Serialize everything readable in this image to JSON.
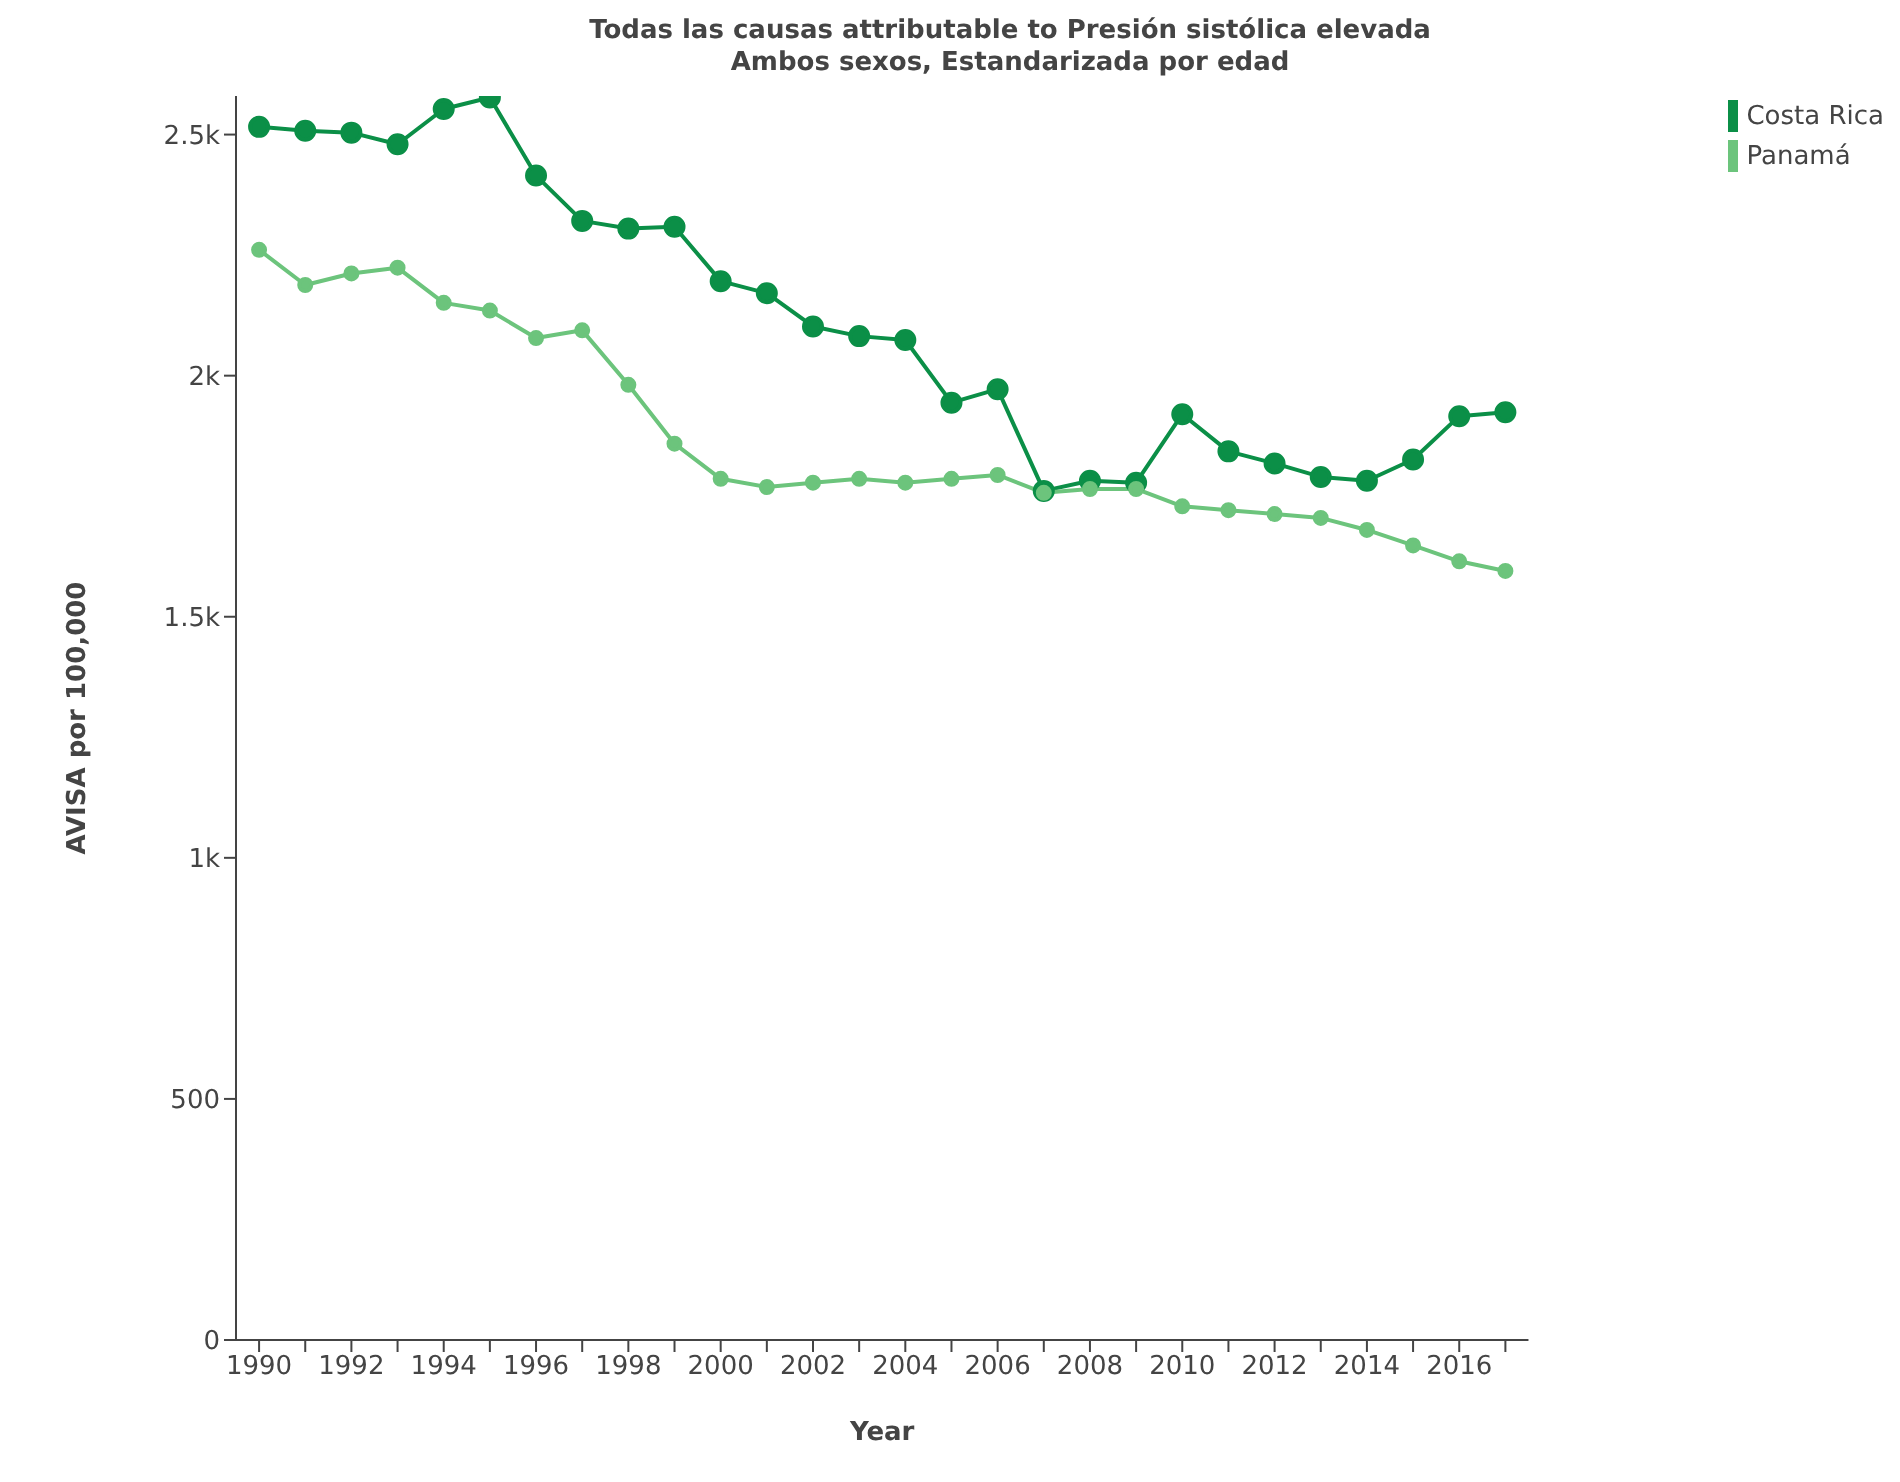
{
  "chart_data": {
    "type": "line",
    "title": "Todas las causas attributable to Presión sistólica elevada",
    "subtitle": "Ambos sexos, Estandarizada por edad",
    "xlabel": "Year",
    "ylabel": "AVISA por 100,000",
    "x": [
      1990,
      1991,
      1992,
      1993,
      1994,
      1995,
      1996,
      1997,
      1998,
      1999,
      2000,
      2001,
      2002,
      2003,
      2004,
      2005,
      2006,
      2007,
      2008,
      2009,
      2010,
      2011,
      2012,
      2013,
      2014,
      2015,
      2016,
      2017
    ],
    "series": [
      {
        "name": "Costa Rica",
        "color": "#0b8f47",
        "values": [
          2516,
          2508,
          2504,
          2480,
          2553,
          2577,
          2415,
          2321,
          2305,
          2309,
          2196,
          2171,
          2102,
          2082,
          2074,
          1944,
          1972,
          1761,
          1782,
          1778,
          1920,
          1843,
          1818,
          1790,
          1782,
          1826,
          1916,
          1924
        ]
      },
      {
        "name": "Panamá",
        "color": "#6cc47c",
        "values": [
          2261,
          2188,
          2212,
          2224,
          2151,
          2135,
          2078,
          2094,
          1981,
          1859,
          1786,
          1769,
          1778,
          1786,
          1778,
          1786,
          1794,
          1757,
          1765,
          1765,
          1729,
          1721,
          1713,
          1705,
          1680,
          1648,
          1615,
          1595
        ]
      }
    ],
    "xlim": [
      1989.5,
      2017.5
    ],
    "xticks": [
      1990,
      {
        "value": 1991,
        "label": null
      },
      1992,
      {
        "value": 1993,
        "label": null
      },
      1994,
      {
        "value": 1995,
        "label": null
      },
      1996,
      {
        "value": 1997,
        "label": null
      },
      1998,
      {
        "value": 1999,
        "label": null
      },
      2000,
      {
        "value": 2001,
        "label": null
      },
      2002,
      {
        "value": 2003,
        "label": null
      },
      2004,
      {
        "value": 2005,
        "label": null
      },
      2006,
      {
        "value": 2007,
        "label": null
      },
      2008,
      {
        "value": 2009,
        "label": null
      },
      2010,
      {
        "value": 2011,
        "label": null
      },
      2012,
      {
        "value": 2013,
        "label": null
      },
      2014,
      {
        "value": 2015,
        "label": null
      },
      2016,
      {
        "value": 2017,
        "label": null
      }
    ],
    "ylim": [
      0,
      2580
    ],
    "yticks": [
      0,
      500,
      {
        "value": 1000,
        "label": "1k"
      },
      {
        "value": 1500,
        "label": "1.5k"
      },
      {
        "value": 2000,
        "label": "2k"
      },
      {
        "value": 2500,
        "label": "2.5k"
      }
    ],
    "grid": false,
    "legend": "top right",
    "marker": "circle",
    "line_style": "solid"
  }
}
